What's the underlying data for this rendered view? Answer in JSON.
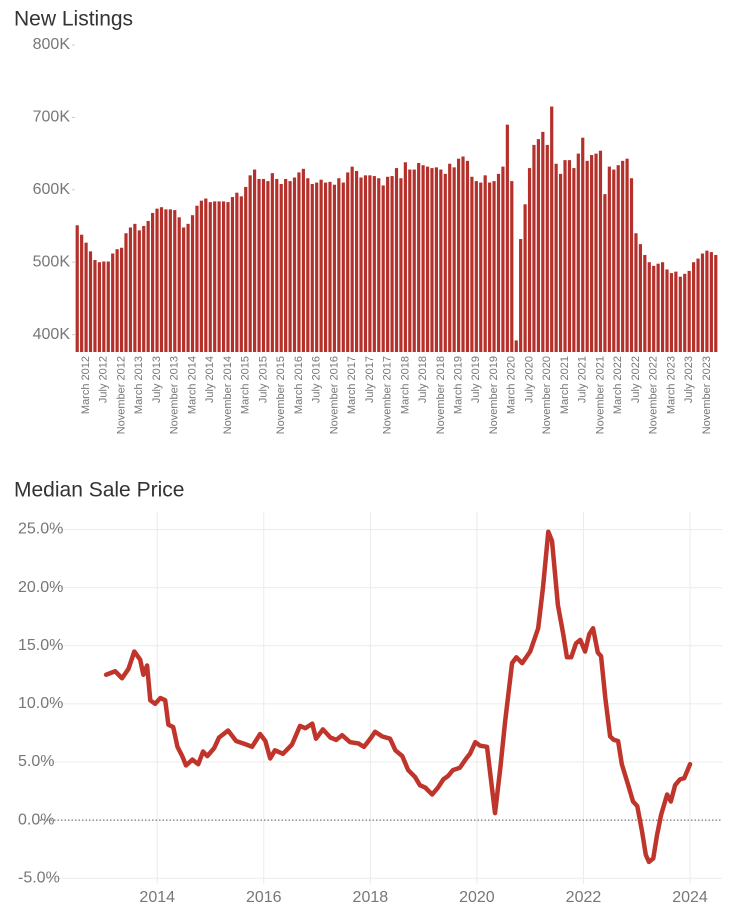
{
  "chart_data": [
    {
      "type": "bar",
      "title": "New Listings",
      "color": "#b5302a",
      "grid": false,
      "ylim": [
        376000,
        800000
      ],
      "yticks": [
        {
          "value": 400000,
          "label": "400K"
        },
        {
          "value": 500000,
          "label": "500K"
        },
        {
          "value": 600000,
          "label": "600K"
        },
        {
          "value": 700000,
          "label": "700K"
        },
        {
          "value": 800000,
          "label": "800K"
        }
      ],
      "categories": [
        null,
        null,
        "March 2012",
        null,
        null,
        null,
        "July 2012",
        null,
        null,
        null,
        "November 2012",
        null,
        null,
        null,
        "March 2013",
        null,
        null,
        null,
        "July 2013",
        null,
        null,
        null,
        "November 2013",
        null,
        null,
        null,
        "March 2014",
        null,
        null,
        null,
        "July 2014",
        null,
        null,
        null,
        "November 2014",
        null,
        null,
        null,
        "March 2015",
        null,
        null,
        null,
        "July 2015",
        null,
        null,
        null,
        "November 2015",
        null,
        null,
        null,
        "March 2016",
        null,
        null,
        null,
        "July 2016",
        null,
        null,
        null,
        "November 2016",
        null,
        null,
        null,
        "March 2017",
        null,
        null,
        null,
        "July 2017",
        null,
        null,
        null,
        "November 2017",
        null,
        null,
        null,
        "March 2018",
        null,
        null,
        null,
        "July 2018",
        null,
        null,
        null,
        "November 2018",
        null,
        null,
        null,
        "March 2019",
        null,
        null,
        null,
        "July 2019",
        null,
        null,
        null,
        "November 2019",
        null,
        null,
        null,
        "March 2020",
        null,
        null,
        null,
        "July 2020",
        null,
        null,
        null,
        "November 2020",
        null,
        null,
        null,
        "March 2021",
        null,
        null,
        null,
        "July 2021",
        null,
        null,
        null,
        "November 2021",
        null,
        null,
        null,
        "March 2022",
        null,
        null,
        null,
        "July 2022",
        null,
        null,
        null,
        "November 2022",
        null,
        null,
        null,
        "March 2023",
        null,
        null,
        null,
        "July 2023",
        null,
        null,
        null,
        "November 2023",
        null,
        null
      ],
      "values": [
        551000,
        538000,
        527000,
        515000,
        503000,
        500000,
        501000,
        501000,
        512000,
        518000,
        520000,
        540000,
        548000,
        553000,
        544000,
        550000,
        557000,
        568000,
        574000,
        576000,
        573000,
        573000,
        572000,
        562000,
        548000,
        553000,
        565000,
        578000,
        585000,
        588000,
        583000,
        584000,
        584000,
        584000,
        583000,
        590000,
        596000,
        591000,
        604000,
        620000,
        628000,
        615000,
        615000,
        612000,
        623000,
        615000,
        608000,
        615000,
        612000,
        617000,
        624000,
        629000,
        616000,
        608000,
        610000,
        614000,
        610000,
        611000,
        607000,
        616000,
        610000,
        624000,
        632000,
        626000,
        617000,
        620000,
        620000,
        619000,
        616000,
        606000,
        618000,
        619000,
        630000,
        616000,
        638000,
        628000,
        628000,
        637000,
        634000,
        632000,
        630000,
        631000,
        628000,
        622000,
        636000,
        631000,
        643000,
        646000,
        640000,
        618000,
        612000,
        610000,
        620000,
        610000,
        612000,
        622000,
        632000,
        690000,
        612000,
        392000,
        532000,
        580000,
        630000,
        662000,
        670000,
        680000,
        662000,
        715000,
        636000,
        622000,
        641000,
        641000,
        630000,
        650000,
        672000,
        640000,
        648000,
        650000,
        654000,
        594000,
        632000,
        628000,
        634000,
        640000,
        643000,
        616000,
        540000,
        525000,
        510000,
        500000,
        495000,
        498000,
        500000,
        490000,
        485000,
        487000,
        480000,
        484000,
        488000,
        500000,
        505000,
        512000,
        516000,
        514000,
        510000
      ]
    },
    {
      "type": "line",
      "title": "Median Sale Price",
      "grid": true,
      "xlim": [
        2011.8,
        2024.6
      ],
      "ylim": [
        -5.5,
        26.5
      ],
      "xticks": [
        2014,
        2016,
        2018,
        2020,
        2022,
        2024
      ],
      "yticks": [
        {
          "value": -5,
          "label": "-5.0%"
        },
        {
          "value": 0,
          "label": "0.0%"
        },
        {
          "value": 5,
          "label": "5.0%"
        },
        {
          "value": 10,
          "label": "10.0%"
        },
        {
          "value": 15,
          "label": "15.0%"
        },
        {
          "value": 20,
          "label": "20.0%"
        },
        {
          "value": 25,
          "label": "25.0%"
        }
      ],
      "series": [
        {
          "color": "#c0352b",
          "x": [
            2013.04,
            2013.21,
            2013.34,
            2013.46,
            2013.57,
            2013.68,
            2013.74,
            2013.81,
            2013.87,
            2013.96,
            2014.06,
            2014.15,
            2014.21,
            2014.3,
            2014.38,
            2014.47,
            2014.54,
            2014.66,
            2014.77,
            2014.86,
            2014.94,
            2015.07,
            2015.16,
            2015.33,
            2015.48,
            2015.67,
            2015.78,
            2015.93,
            2016.03,
            2016.12,
            2016.21,
            2016.36,
            2016.53,
            2016.68,
            2016.78,
            2016.91,
            2016.98,
            2017.11,
            2017.25,
            2017.36,
            2017.47,
            2017.62,
            2017.77,
            2017.88,
            2018.0,
            2018.09,
            2018.22,
            2018.37,
            2018.47,
            2018.6,
            2018.71,
            2018.84,
            2018.93,
            2019.03,
            2019.16,
            2019.27,
            2019.37,
            2019.46,
            2019.55,
            2019.68,
            2019.8,
            2019.87,
            2019.97,
            2020.06,
            2020.19,
            2020.25,
            2020.34,
            2020.44,
            2020.53,
            2020.66,
            2020.74,
            2020.85,
            2021.0,
            2021.15,
            2021.24,
            2021.34,
            2021.41,
            2021.52,
            2021.62,
            2021.69,
            2021.77,
            2021.86,
            2021.94,
            2022.03,
            2022.11,
            2022.18,
            2022.27,
            2022.33,
            2022.41,
            2022.5,
            2022.57,
            2022.65,
            2022.72,
            2022.84,
            2022.93,
            2023.01,
            2023.1,
            2023.17,
            2023.23,
            2023.31,
            2023.38,
            2023.46,
            2023.57,
            2023.64,
            2023.72,
            2023.81,
            2023.89,
            2024.0
          ],
          "values": [
            12.5,
            12.8,
            12.2,
            13,
            14.5,
            13.8,
            12.5,
            13.3,
            10.3,
            10,
            10.5,
            10.3,
            8.2,
            8,
            6.3,
            5.5,
            4.7,
            5.2,
            4.8,
            5.9,
            5.5,
            6.2,
            7.1,
            7.7,
            6.8,
            6.5,
            6.3,
            7.4,
            6.8,
            5.3,
            6,
            5.7,
            6.5,
            8.1,
            7.9,
            8.3,
            7,
            7.8,
            7.1,
            6.9,
            7.3,
            6.7,
            6.6,
            6.3,
            7,
            7.6,
            7.2,
            7,
            6,
            5.5,
            4.3,
            3.7,
            3,
            2.8,
            2.2,
            2.8,
            3.5,
            3.8,
            4.3,
            4.5,
            5.3,
            5.7,
            6.7,
            6.4,
            6.3,
            4,
            0.6,
            4.5,
            8.5,
            13.5,
            14,
            13.5,
            14.5,
            16.5,
            20,
            24.8,
            24,
            18.5,
            16,
            14,
            14,
            15.2,
            15.5,
            14.5,
            16,
            16.5,
            14.4,
            14.1,
            10.5,
            7.2,
            6.9,
            6.8,
            4.8,
            3,
            1.6,
            1.2,
            -1,
            -3,
            -3.6,
            -3.3,
            -1.3,
            0.5,
            2.2,
            1.6,
            3,
            3.5,
            3.6,
            4.8
          ]
        }
      ]
    }
  ]
}
